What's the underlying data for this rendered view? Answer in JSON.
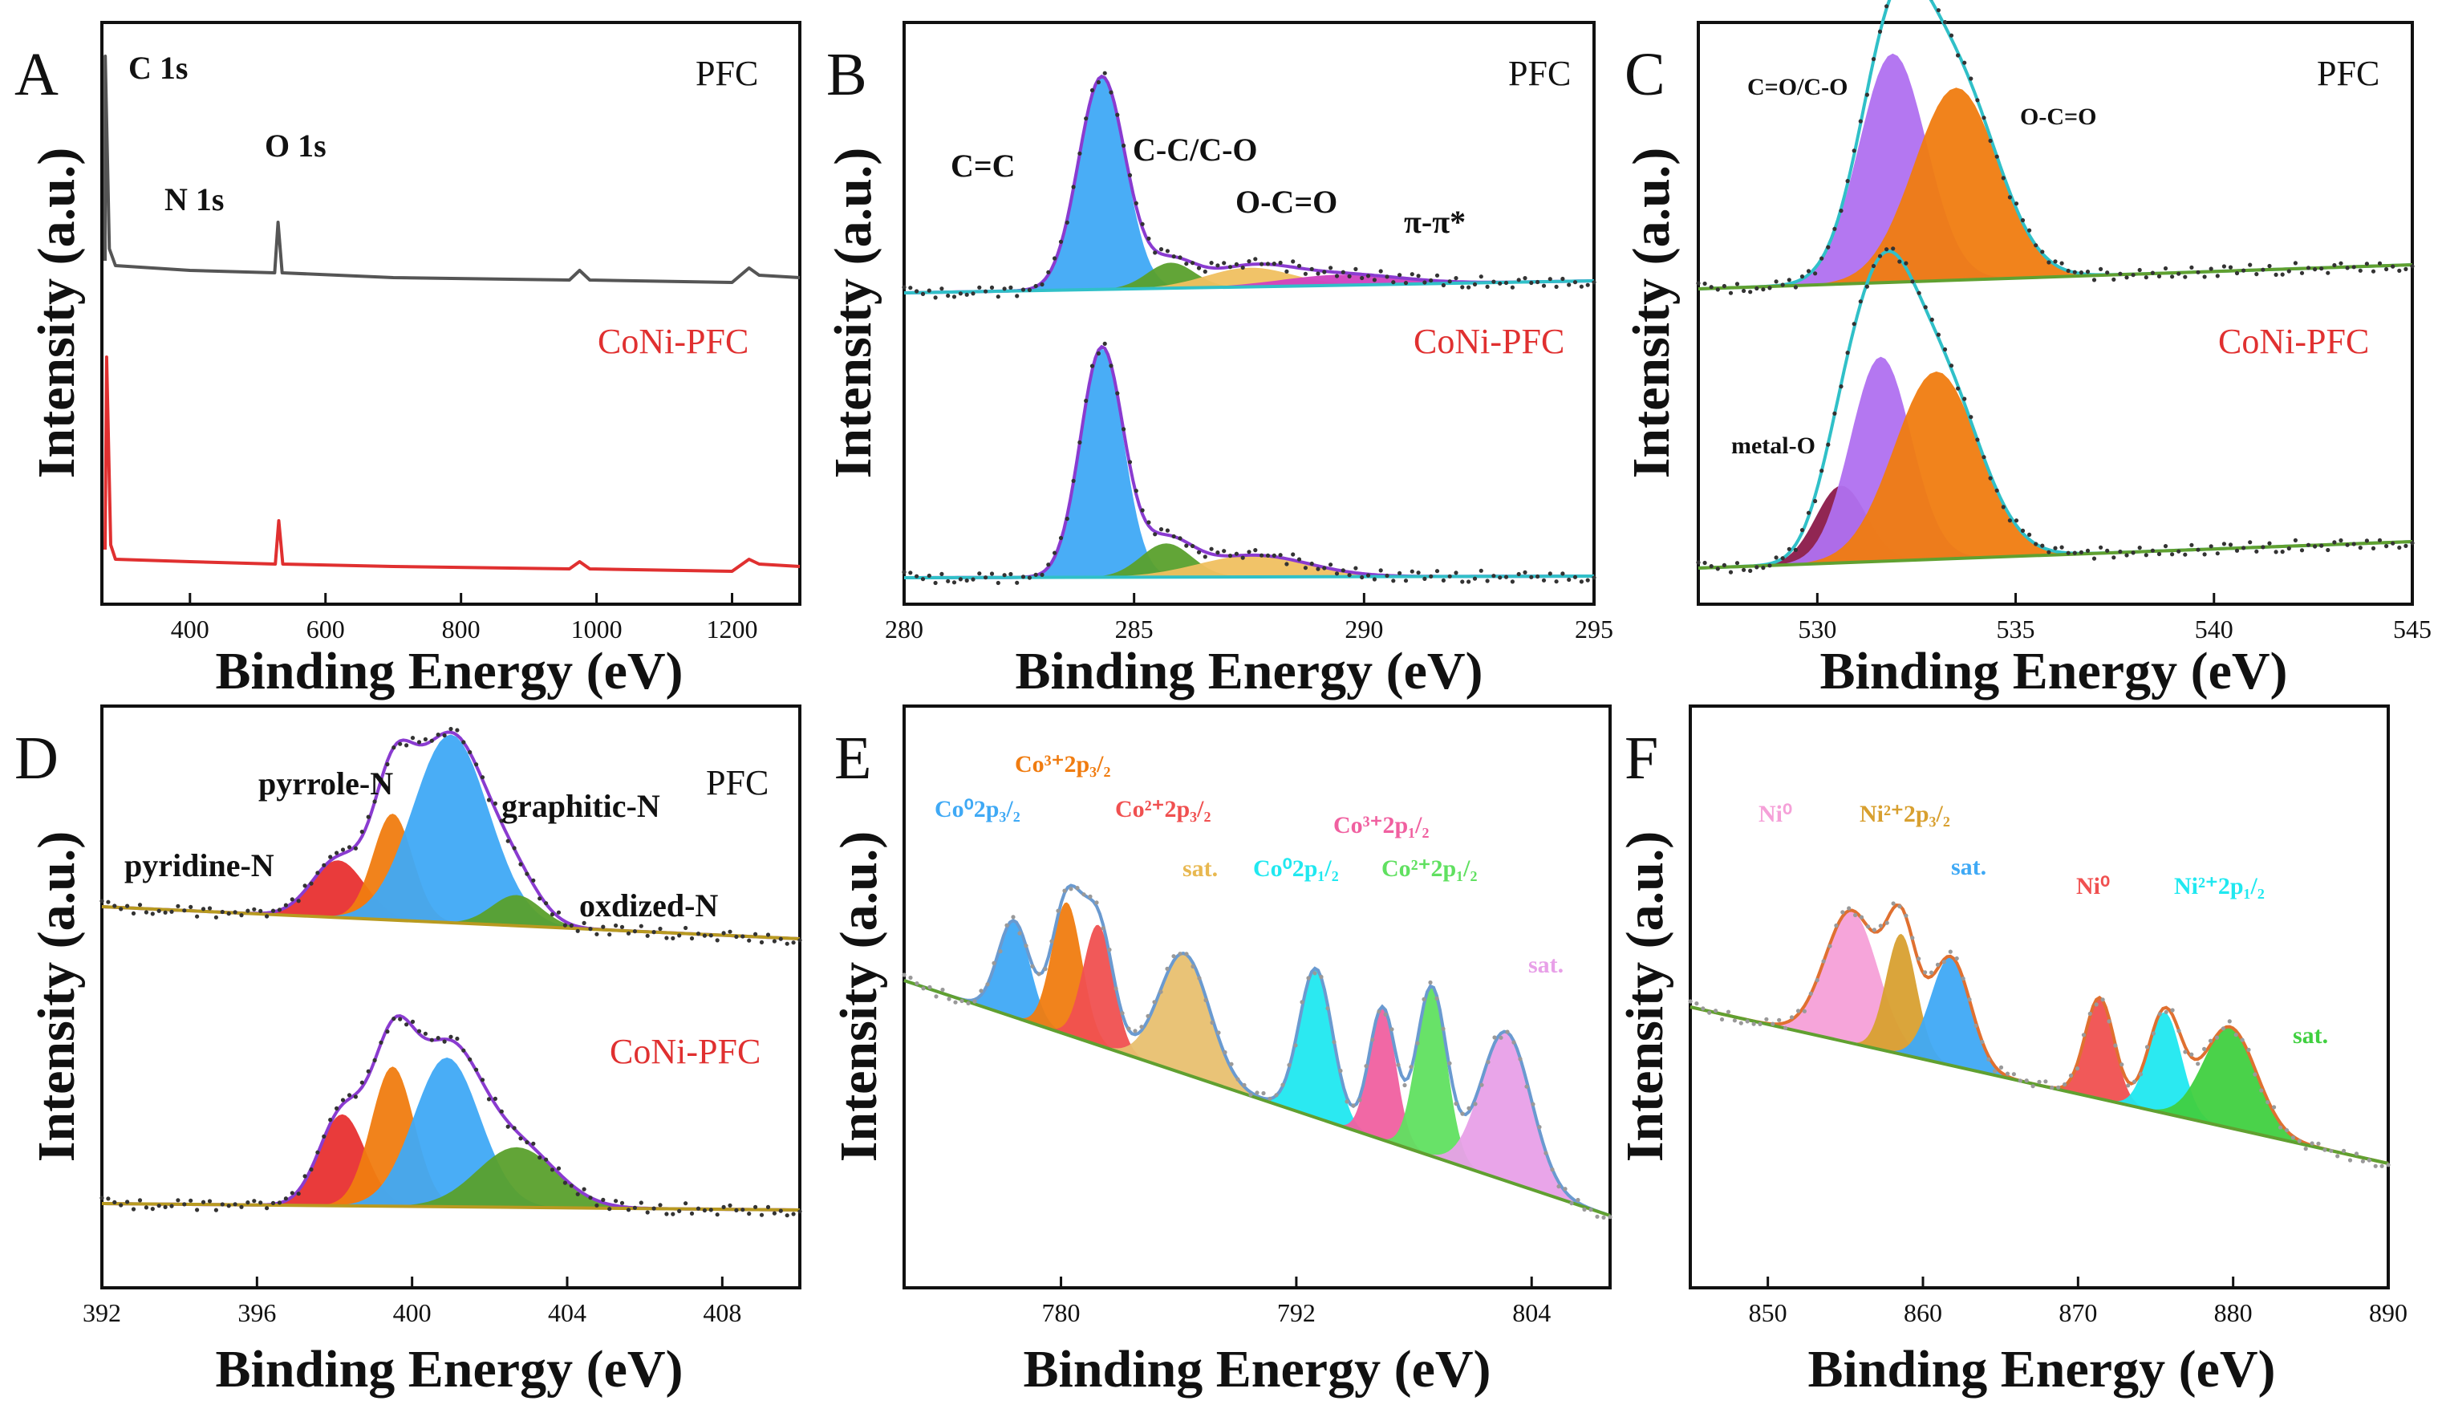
{
  "chart_data": [
    {
      "id": "A",
      "type": "line",
      "panel_label": "A",
      "xlabel": "Binding Energy (eV)",
      "ylabel": "Intensity (a.u.)",
      "xlim": [
        270,
        1300
      ],
      "xticks": [
        "400",
        "600",
        "800",
        "1000",
        "1200"
      ],
      "series": [
        {
          "name": "PFC",
          "color": "#555555",
          "points": [
            [
              270,
              0.1
            ],
            [
              275,
              0.95
            ],
            [
              281,
              0.15
            ],
            [
              290,
              0.08
            ],
            [
              400,
              0.06
            ],
            [
              525,
              0.05
            ],
            [
              530,
              0.26
            ],
            [
              536,
              0.05
            ],
            [
              700,
              0.03
            ],
            [
              960,
              0.02
            ],
            [
              975,
              0.06
            ],
            [
              990,
              0.02
            ],
            [
              1200,
              0.01
            ],
            [
              1225,
              0.07
            ],
            [
              1240,
              0.04
            ],
            [
              1300,
              0.03
            ]
          ]
        },
        {
          "name": "CoNi-PFC",
          "color": "#e03030",
          "points": [
            [
              270,
              0.1
            ],
            [
              277,
              0.9
            ],
            [
              283,
              0.12
            ],
            [
              290,
              0.06
            ],
            [
              400,
              0.05
            ],
            [
              526,
              0.04
            ],
            [
              531,
              0.22
            ],
            [
              537,
              0.04
            ],
            [
              700,
              0.03
            ],
            [
              960,
              0.02
            ],
            [
              975,
              0.05
            ],
            [
              990,
              0.02
            ],
            [
              1200,
              0.01
            ],
            [
              1225,
              0.06
            ],
            [
              1240,
              0.04
            ],
            [
              1300,
              0.03
            ]
          ]
        }
      ],
      "annotations": [
        "C 1s",
        "N 1s",
        "O 1s"
      ]
    },
    {
      "id": "B",
      "type": "area",
      "panel_label": "B",
      "xlabel": "Binding Energy (eV)",
      "ylabel": "Intensity (a.u.)",
      "xlim": [
        280,
        295
      ],
      "xticks": [
        "280",
        "285",
        "290",
        "295"
      ],
      "samples": [
        {
          "name": "PFC",
          "components": [
            {
              "label": "C=C",
              "center": 284.3,
              "fwhm": 1.2,
              "height": 1.0,
              "color": "#3fa9f5"
            },
            {
              "label": "C-C/C-O",
              "center": 285.8,
              "fwhm": 1.2,
              "height": 0.12,
              "color": "#5aa02c"
            },
            {
              "label": "O-C=O",
              "center": 287.5,
              "fwhm": 2.2,
              "height": 0.09,
              "color": "#f0c060"
            },
            {
              "label": "π-π*",
              "center": 289.5,
              "fwhm": 3.0,
              "height": 0.05,
              "color": "#d040c0"
            }
          ]
        },
        {
          "name": "CoNi-PFC",
          "components": [
            {
              "label": "C=C",
              "center": 284.3,
              "fwhm": 1.1,
              "height": 0.95,
              "color": "#3fa9f5"
            },
            {
              "label": "C-C/C-O",
              "center": 285.7,
              "fwhm": 1.3,
              "height": 0.14,
              "color": "#5aa02c"
            },
            {
              "label": "O-C=O",
              "center": 287.6,
              "fwhm": 2.8,
              "height": 0.09,
              "color": "#f0c060"
            }
          ]
        }
      ],
      "annotations": [
        "C=C",
        "C-C/C-O",
        "O-C=O",
        "π-π*"
      ]
    },
    {
      "id": "C",
      "type": "area",
      "panel_label": "C",
      "xlabel": "Binding Energy (eV)",
      "ylabel": "Intensity (a.u.)",
      "xlim": [
        527,
        545
      ],
      "xticks": [
        "530",
        "535",
        "540",
        "545"
      ],
      "samples": [
        {
          "name": "PFC",
          "components": [
            {
              "label": "C=O/C-O",
              "center": 531.9,
              "fwhm": 2.0,
              "height": 0.95,
              "color": "#b070f0"
            },
            {
              "label": "O-C=O",
              "center": 533.5,
              "fwhm": 2.5,
              "height": 0.8,
              "color": "#f07c10"
            }
          ]
        },
        {
          "name": "CoNi-PFC",
          "components": [
            {
              "label": "metal-O",
              "center": 530.6,
              "fwhm": 1.5,
              "height": 0.32,
              "color": "#8b1a4a"
            },
            {
              "label": "C=O/C-O",
              "center": 531.6,
              "fwhm": 1.8,
              "height": 0.85,
              "color": "#b070f0"
            },
            {
              "label": "O-C=O",
              "center": 533.0,
              "fwhm": 2.5,
              "height": 0.78,
              "color": "#f07c10"
            }
          ]
        }
      ],
      "annotations": [
        "C=O/C-O",
        "O-C=O",
        "metal-O"
      ]
    },
    {
      "id": "D",
      "type": "area",
      "panel_label": "D",
      "xlabel": "Binding Energy (eV)",
      "ylabel": "Intensity (a.u.)",
      "xlim": [
        392,
        410
      ],
      "xticks": [
        "392",
        "396",
        "400",
        "404",
        "408"
      ],
      "samples": [
        {
          "name": "PFC",
          "components": [
            {
              "label": "pyridine-N",
              "center": 398.1,
              "fwhm": 1.6,
              "height": 0.28,
              "color": "#e83030"
            },
            {
              "label": "pyrrole-N",
              "center": 399.5,
              "fwhm": 1.2,
              "height": 0.52,
              "color": "#f07c10"
            },
            {
              "label": "graphitic-N",
              "center": 401.0,
              "fwhm": 2.3,
              "height": 0.92,
              "color": "#3fa9f5"
            },
            {
              "label": "oxdized-N",
              "center": 402.7,
              "fwhm": 1.5,
              "height": 0.15,
              "color": "#5aa02c"
            }
          ]
        },
        {
          "name": "CoNi-PFC",
          "components": [
            {
              "label": "pyridine-N",
              "center": 398.2,
              "fwhm": 1.4,
              "height": 0.38,
              "color": "#e83030"
            },
            {
              "label": "pyrrole-N",
              "center": 399.5,
              "fwhm": 1.3,
              "height": 0.58,
              "color": "#f07c10"
            },
            {
              "label": "graphitic-N",
              "center": 400.9,
              "fwhm": 2.0,
              "height": 0.62,
              "color": "#3fa9f5"
            },
            {
              "label": "oxdized-N",
              "center": 402.7,
              "fwhm": 2.4,
              "height": 0.25,
              "color": "#5aa02c"
            }
          ]
        }
      ],
      "annotations": [
        "pyridine-N",
        "pyrrole-N",
        "graphitic-N",
        "oxdized-N"
      ]
    },
    {
      "id": "E",
      "type": "area",
      "panel_label": "E",
      "xlabel": "Binding Energy (eV)",
      "ylabel": "Intensity (a.u.)",
      "xlim": [
        772,
        808
      ],
      "xticks": [
        "780",
        "792",
        "804"
      ],
      "components": [
        {
          "label": "Co⁰2p₃/₂",
          "center": 777.6,
          "fwhm": 1.9,
          "height": 0.4,
          "color": "#3fa9f5"
        },
        {
          "label": "Co³⁺2p₃/₂",
          "center": 780.3,
          "fwhm": 1.8,
          "height": 0.55,
          "color": "#f07c10"
        },
        {
          "label": "Co²⁺2p₃/₂",
          "center": 781.9,
          "fwhm": 1.8,
          "height": 0.5,
          "color": "#f05050"
        },
        {
          "label": "sat.",
          "center": 786.3,
          "fwhm": 3.0,
          "height": 0.5,
          "color": "#e8c070"
        },
        {
          "label": "Co⁰2p₁/₂",
          "center": 793.0,
          "fwhm": 2.0,
          "height": 0.62,
          "color": "#20e8f0"
        },
        {
          "label": "Co³⁺2p₁/₂",
          "center": 796.4,
          "fwhm": 1.6,
          "height": 0.55,
          "color": "#f060a0"
        },
        {
          "label": "Co²⁺2p₁/₂",
          "center": 798.9,
          "fwhm": 1.8,
          "height": 0.7,
          "color": "#60e060"
        },
        {
          "label": "sat.",
          "center": 802.7,
          "fwhm": 3.0,
          "height": 0.62,
          "color": "#e8a0e8"
        }
      ],
      "annotations": [
        "Co⁰2p₃/₂",
        "Co³⁺2p₃/₂",
        "Co²⁺2p₃/₂",
        "sat.",
        "Co⁰2p₁/₂",
        "Co³⁺2p₁/₂",
        "Co²⁺2p₁/₂",
        "sat."
      ]
    },
    {
      "id": "F",
      "type": "area",
      "panel_label": "F",
      "xlabel": "Binding Energy (eV)",
      "ylabel": "Intensity (a.u.)",
      "xlim": [
        845,
        890
      ],
      "xticks": [
        "850",
        "860",
        "870",
        "880",
        "890"
      ],
      "components": [
        {
          "label": "Ni⁰",
          "center": 855.4,
          "fwhm": 4.0,
          "height": 0.55,
          "color": "#f5a0d8"
        },
        {
          "label": "Ni²⁺2p₃/₂",
          "center": 858.6,
          "fwhm": 2.3,
          "height": 0.5,
          "color": "#d8a030"
        },
        {
          "label": "sat.",
          "center": 861.8,
          "fwhm": 3.0,
          "height": 0.45,
          "color": "#3fa9f5"
        },
        {
          "label": "Ni⁰",
          "center": 871.4,
          "fwhm": 2.2,
          "height": 0.42,
          "color": "#f05050"
        },
        {
          "label": "Ni²⁺2p₁/₂",
          "center": 875.6,
          "fwhm": 2.5,
          "height": 0.42,
          "color": "#20e8f0"
        },
        {
          "label": "sat.",
          "center": 879.8,
          "fwhm": 4.0,
          "height": 0.42,
          "color": "#40d040"
        }
      ],
      "annotations": [
        "Ni⁰",
        "Ni²⁺2p₃/₂",
        "sat.",
        "Ni⁰",
        "Ni²⁺2p₁/₂",
        "sat."
      ]
    }
  ]
}
